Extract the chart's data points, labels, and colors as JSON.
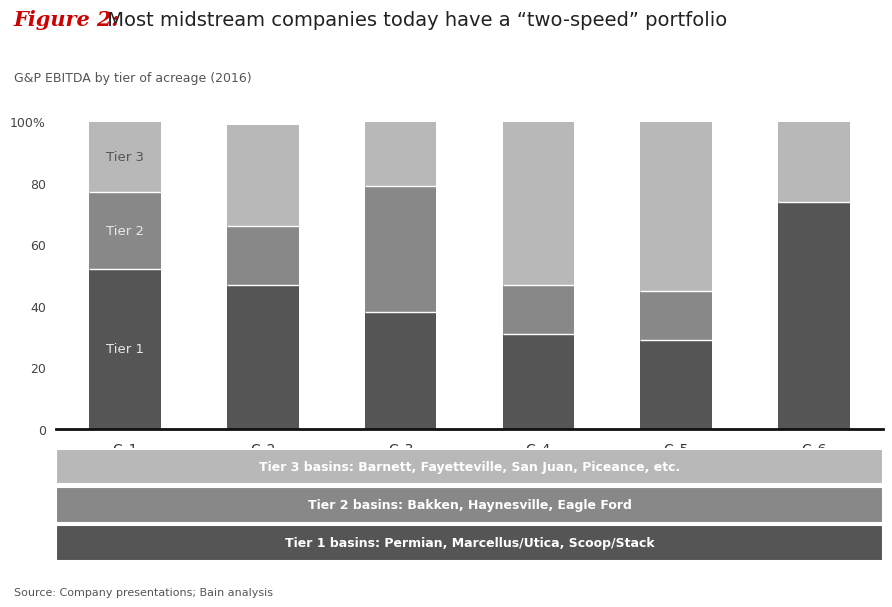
{
  "categories": [
    "C–1",
    "C–2",
    "C–3",
    "C–4",
    "C–5",
    "C–6"
  ],
  "tier1": [
    52,
    47,
    38,
    31,
    29,
    74
  ],
  "tier2": [
    25,
    19,
    41,
    16,
    16,
    0
  ],
  "tier3": [
    23,
    33,
    21,
    53,
    55,
    26
  ],
  "tier1_color": "#555555",
  "tier2_color": "#888888",
  "tier3_color": "#b8b8b8",
  "tier1_label": "Tier 1 basins: Permian, Marcellus/Utica, Scoop/Stack",
  "tier2_label": "Tier 2 basins: Bakken, Haynesville, Eagle Ford",
  "tier3_label": "Tier 3 basins: Barnett, Fayetteville, San Juan, Piceance, etc.",
  "title_italic": "Figure 2:",
  "title_regular": " Most midstream companies today have a “two-speed” portfolio",
  "subtitle": "G&P EBITDA by tier of acreage (2016)",
  "source": "Source: Company presentations; Bain analysis",
  "title_color_italic": "#cc0000",
  "title_color_regular": "#222222",
  "background_color": "#ffffff",
  "bar_label_color": "#dddddd",
  "legend_text_color": "#ffffff"
}
